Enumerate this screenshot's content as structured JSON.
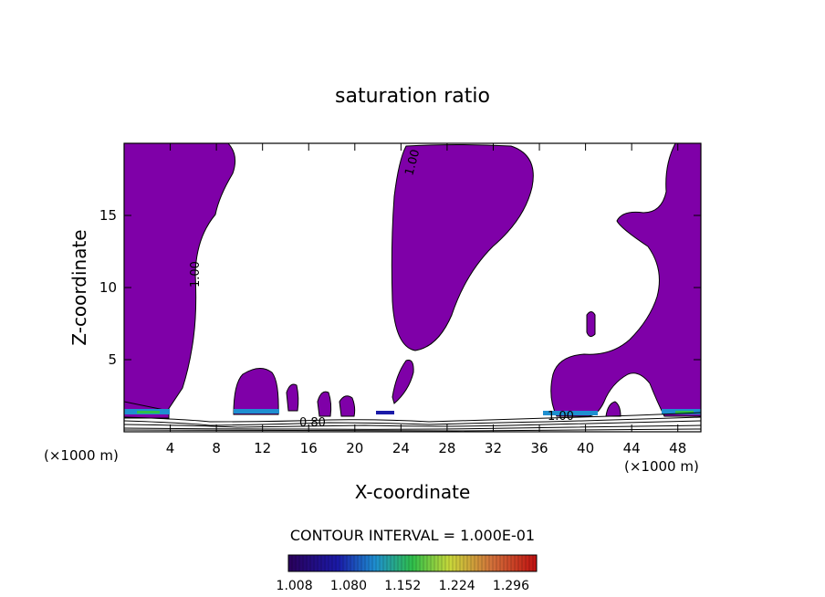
{
  "chart_data": {
    "type": "contour",
    "title": "saturation ratio",
    "xlabel": "X-coordinate",
    "ylabel": "Z-coordinate",
    "x_unit_label": "(×1000 m)",
    "x_unit_label_right": "(×1000 m)",
    "xlim": [
      0,
      50
    ],
    "ylim": [
      0,
      20
    ],
    "x_ticks": [
      "4",
      "8",
      "12",
      "16",
      "20",
      "24",
      "28",
      "32",
      "36",
      "40",
      "44",
      "48"
    ],
    "y_ticks": [
      "5",
      "10",
      "15"
    ],
    "contour_labels": [
      "1.00",
      "1.00",
      "0.80",
      "1.00"
    ],
    "contour_interval_text": "CONTOUR INTERVAL = 1.000E-01",
    "colorbar": {
      "labels": [
        "1.008",
        "1.080",
        "1.152",
        "1.224",
        "1.296"
      ],
      "min": 1.0,
      "max": 1.33
    },
    "fill_color": "#7f00a8"
  }
}
